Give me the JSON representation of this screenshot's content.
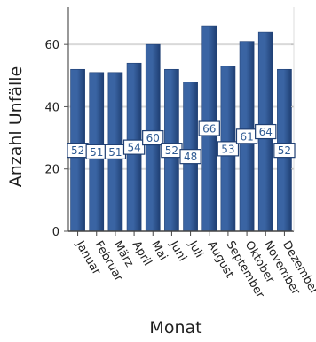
{
  "chart_data": {
    "type": "bar",
    "title": "",
    "xlabel": "Monat",
    "ylabel": "Anzahl Unfälle",
    "categories": [
      "Januar",
      "Februar",
      "März",
      "April",
      "Mai",
      "Juni",
      "Juli",
      "August",
      "September",
      "Oktober",
      "November",
      "Dezember"
    ],
    "values": [
      52,
      51,
      51,
      54,
      60,
      52,
      48,
      66,
      53,
      61,
      64,
      52
    ],
    "ylim": [
      0,
      72
    ],
    "yticks": [
      0,
      20,
      40,
      60
    ],
    "grid": true,
    "legend": "none",
    "bar_color": "#3a64a3",
    "bar_color_dark": "#1f3f73",
    "grid_color": "#d9d9d9",
    "label_color": "#2e5a93"
  }
}
